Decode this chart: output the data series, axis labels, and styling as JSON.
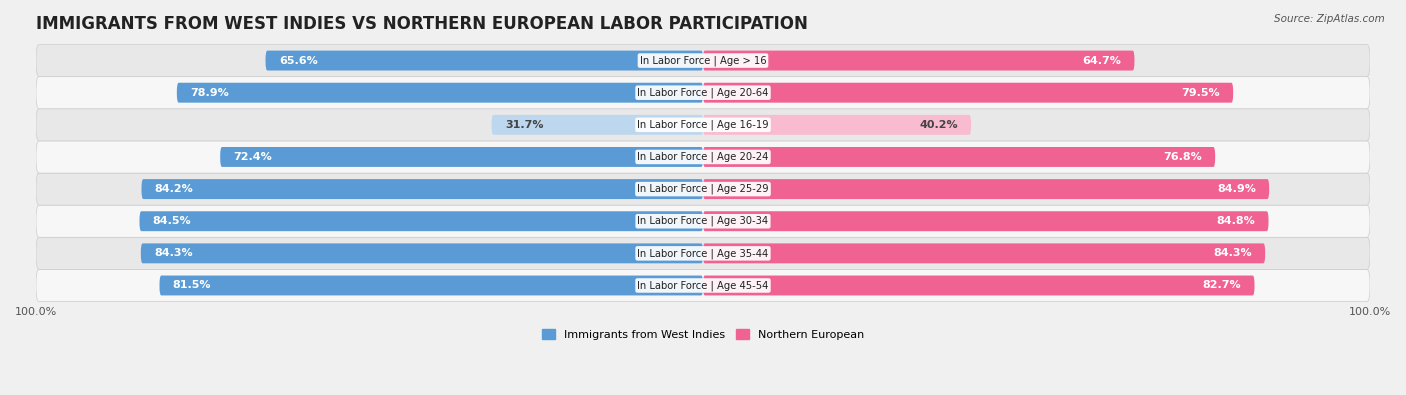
{
  "title": "IMMIGRANTS FROM WEST INDIES VS NORTHERN EUROPEAN LABOR PARTICIPATION",
  "source": "Source: ZipAtlas.com",
  "categories": [
    "In Labor Force | Age > 16",
    "In Labor Force | Age 20-64",
    "In Labor Force | Age 16-19",
    "In Labor Force | Age 20-24",
    "In Labor Force | Age 25-29",
    "In Labor Force | Age 30-34",
    "In Labor Force | Age 35-44",
    "In Labor Force | Age 45-54"
  ],
  "west_indies_values": [
    65.6,
    78.9,
    31.7,
    72.4,
    84.2,
    84.5,
    84.3,
    81.5
  ],
  "northern_european_values": [
    64.7,
    79.5,
    40.2,
    76.8,
    84.9,
    84.8,
    84.3,
    82.7
  ],
  "west_indies_color": "#5b9bd5",
  "west_indies_color_light": "#bdd7ee",
  "northern_european_color": "#f06292",
  "northern_european_color_light": "#f8bbd0",
  "x_max": 100.0,
  "background_color": "#f0f0f0",
  "row_bg_light": "#f7f7f7",
  "row_bg_dark": "#e8e8e8",
  "legend_label_west": "Immigrants from West Indies",
  "legend_label_north": "Northern European",
  "title_fontsize": 12,
  "label_fontsize": 8,
  "tick_fontsize": 8,
  "source_fontsize": 7.5
}
